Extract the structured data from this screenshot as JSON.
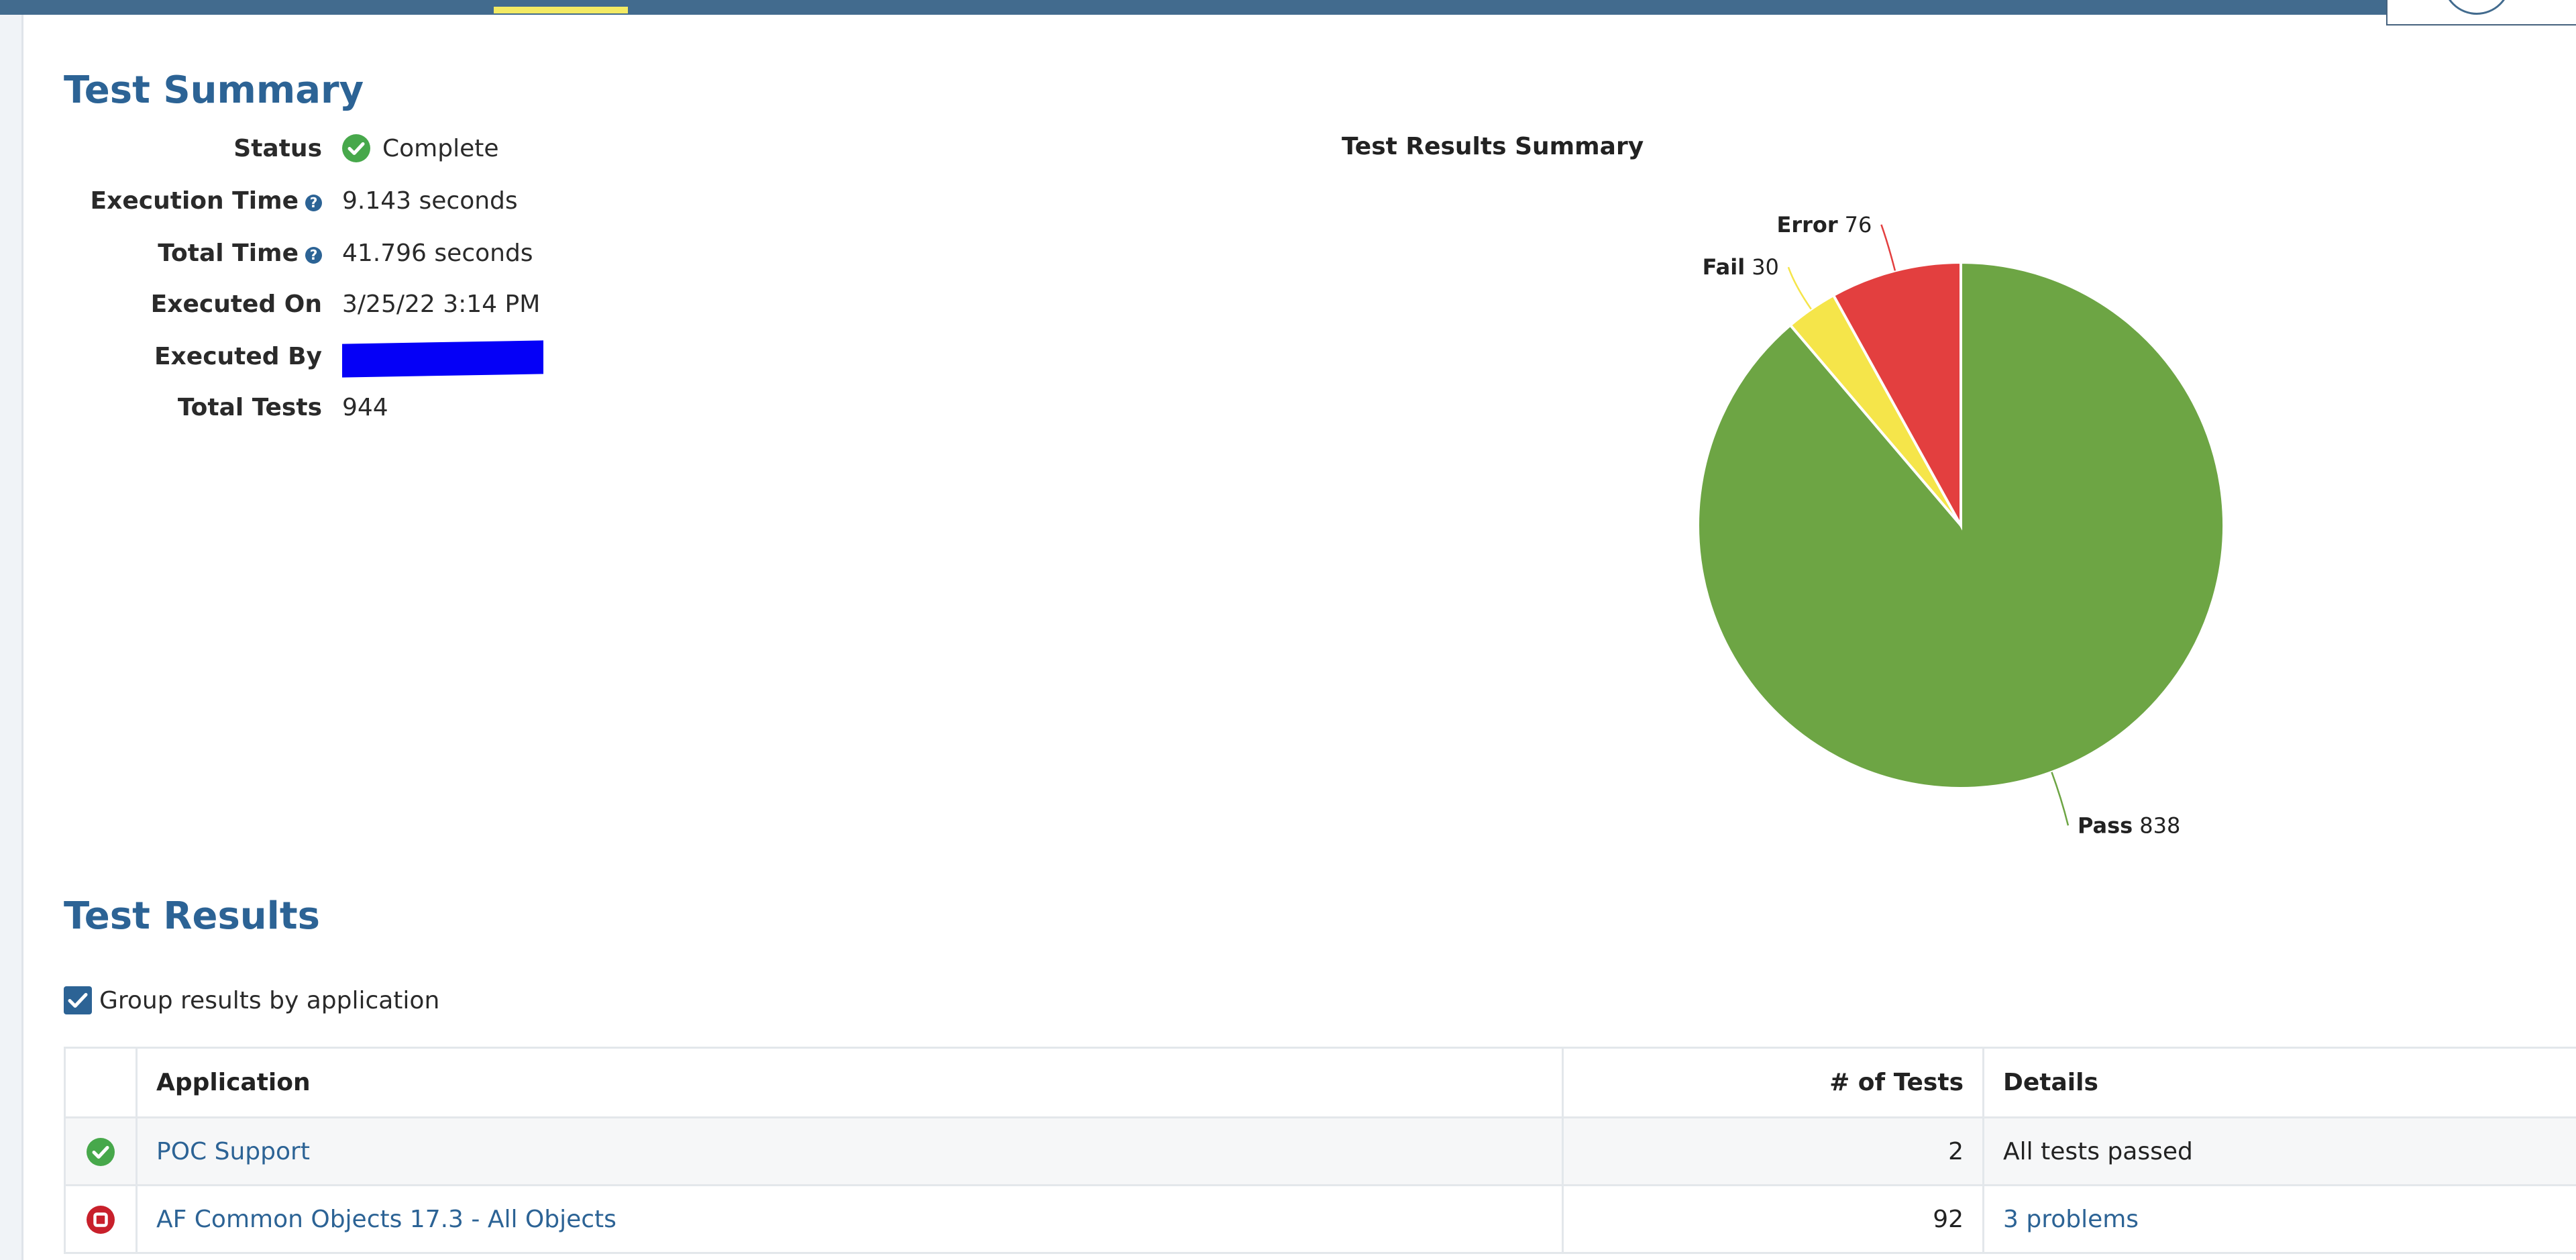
{
  "colors": {
    "accent": "#2c6395",
    "nav_bar": "#426b8e",
    "active_tab": "#f3ea63",
    "pass": "#6da544",
    "fail": "#f5e54a",
    "error": "#e33f3f",
    "redaction": "#0500f7"
  },
  "test_summary": {
    "title": "Test Summary",
    "rows": [
      {
        "label": "Status",
        "value": "Complete",
        "icon": "check-circle-icon"
      },
      {
        "label": "Execution Time",
        "value": "9.143 seconds",
        "help_icon": "question-circle-icon"
      },
      {
        "label": "Total Time",
        "value": "41.796 seconds",
        "help_icon": "question-circle-icon"
      },
      {
        "label": "Executed On",
        "value": "3/25/22 3:14 PM"
      },
      {
        "label": "Executed By"
      },
      {
        "label": "Total Tests",
        "value": "944"
      }
    ]
  },
  "chart_data": {
    "type": "pie",
    "title": "Test Results Summary",
    "categories": [
      "Pass",
      "Fail",
      "Error"
    ],
    "values": [
      838,
      30,
      76
    ],
    "colors": [
      "#6da544",
      "#f5e54a",
      "#e33f3f"
    ]
  },
  "test_results": {
    "title": "Test Results",
    "group_checkbox_label": "Group results by application",
    "group_checked": true,
    "columns": [
      "Application",
      "# of Tests",
      "Details"
    ],
    "rows": [
      {
        "status": "pass",
        "icon": "check-circle-icon",
        "application": "POC Support",
        "tests": "2",
        "details": "All tests passed",
        "details_is_link": false
      },
      {
        "status": "fail",
        "icon": "stop-circle-icon",
        "application": "AF Common Objects 17.3 - All Objects",
        "tests": "92",
        "details": "3 problems",
        "details_is_link": true
      }
    ]
  }
}
